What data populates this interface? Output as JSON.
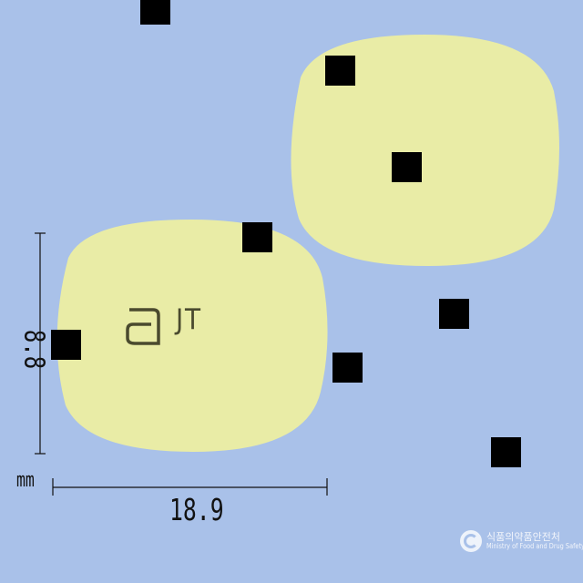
{
  "image": {
    "background": "#a9c1e9",
    "tablet_color": "#e9eca6"
  },
  "tablet": {
    "shape": "rounded rectangle / oval",
    "imprint_logo_icon": "abbott-a-logo-icon",
    "imprint_text": "JT"
  },
  "dimensions": {
    "width": "18.9",
    "height": "8.8",
    "unit": "mm"
  },
  "watermark": {
    "korean": "식품의약품안전처",
    "english": "Ministry of Food and Drug Safety",
    "icon": "mfds-emblem-icon"
  }
}
